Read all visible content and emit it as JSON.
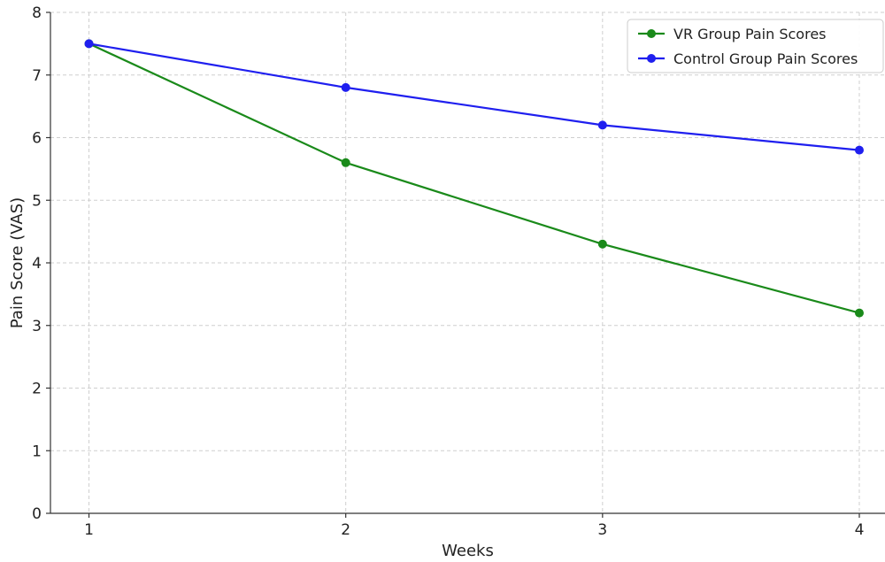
{
  "chart_data": {
    "type": "line",
    "title": "",
    "xlabel": "Weeks",
    "ylabel": "Pain Score (VAS)",
    "x": [
      1,
      2,
      3,
      4
    ],
    "xlim": [
      0.85,
      4.1
    ],
    "ylim": [
      0,
      8
    ],
    "xticks": [
      1,
      2,
      3,
      4
    ],
    "yticks": [
      0,
      1,
      2,
      3,
      4,
      5,
      6,
      7,
      8
    ],
    "grid": true,
    "legend_position": "top-right",
    "series": [
      {
        "name": "VR Group Pain Scores",
        "color": "#1a8a1a",
        "values": [
          7.5,
          5.6,
          4.3,
          3.2
        ]
      },
      {
        "name": "Control Group Pain Scores",
        "color": "#1f1fef",
        "values": [
          7.5,
          6.8,
          6.2,
          5.8
        ]
      }
    ]
  }
}
